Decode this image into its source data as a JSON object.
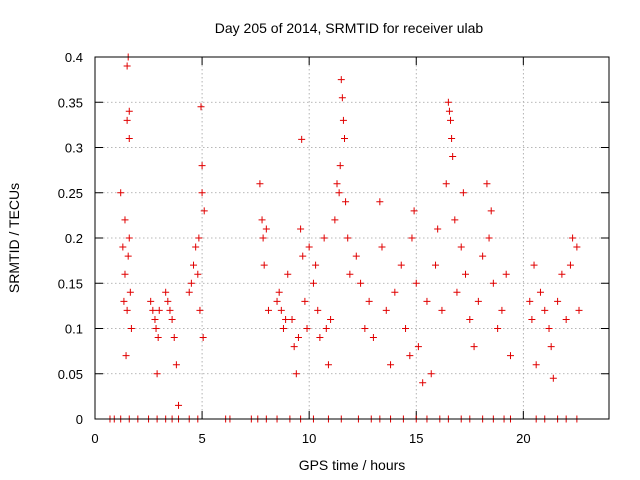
{
  "chart_data": {
    "type": "scatter",
    "title": "Day 205 of 2014, SRMTID for receiver ulab",
    "xlabel": "GPS time / hours",
    "ylabel": "SRMTID / TECUs",
    "xlim": [
      0,
      24
    ],
    "ylim": [
      0,
      0.4
    ],
    "xticks": [
      0,
      5,
      10,
      15,
      20
    ],
    "xtick_labels": [
      "0",
      "5",
      "10",
      "15",
      "20"
    ],
    "yticks": [
      0,
      0.05,
      0.1,
      0.15,
      0.2,
      0.25,
      0.3,
      0.35,
      0.4
    ],
    "ytick_labels": [
      "0",
      "0.05",
      "0.1",
      "0.15",
      "0.2",
      "0.25",
      "0.3",
      "0.35",
      "0.4"
    ],
    "grid": true,
    "marker": "plus",
    "color": "#e00000",
    "series": [
      {
        "name": "SRMTID",
        "points": [
          [
            1.2,
            0.25
          ],
          [
            1.3,
            0.19
          ],
          [
            1.35,
            0.13
          ],
          [
            1.4,
            0.22
          ],
          [
            1.4,
            0.16
          ],
          [
            1.45,
            0.07
          ],
          [
            1.5,
            0.39
          ],
          [
            1.5,
            0.33
          ],
          [
            1.5,
            0.12
          ],
          [
            1.55,
            0.4
          ],
          [
            1.55,
            0.18
          ],
          [
            1.6,
            0.34
          ],
          [
            1.6,
            0.31
          ],
          [
            1.6,
            0.2
          ],
          [
            1.65,
            0.14
          ],
          [
            1.7,
            0.1
          ],
          [
            2.6,
            0.13
          ],
          [
            2.7,
            0.12
          ],
          [
            2.8,
            0.11
          ],
          [
            2.85,
            0.1
          ],
          [
            2.9,
            0.05
          ],
          [
            2.95,
            0.09
          ],
          [
            3.0,
            0.12
          ],
          [
            3.3,
            0.14
          ],
          [
            3.4,
            0.13
          ],
          [
            3.5,
            0.12
          ],
          [
            3.6,
            0.11
          ],
          [
            3.7,
            0.09
          ],
          [
            3.8,
            0.06
          ],
          [
            3.9,
            0.015
          ],
          [
            4.4,
            0.14
          ],
          [
            4.5,
            0.15
          ],
          [
            4.6,
            0.17
          ],
          [
            4.7,
            0.19
          ],
          [
            4.8,
            0.16
          ],
          [
            4.85,
            0.2
          ],
          [
            4.9,
            0.12
          ],
          [
            4.95,
            0.345
          ],
          [
            5.0,
            0.28
          ],
          [
            5.0,
            0.25
          ],
          [
            5.05,
            0.09
          ],
          [
            5.1,
            0.23
          ],
          [
            7.7,
            0.26
          ],
          [
            7.8,
            0.22
          ],
          [
            7.85,
            0.2
          ],
          [
            7.9,
            0.17
          ],
          [
            8.0,
            0.21
          ],
          [
            8.1,
            0.12
          ],
          [
            8.5,
            0.13
          ],
          [
            8.6,
            0.14
          ],
          [
            8.7,
            0.12
          ],
          [
            8.8,
            0.1
          ],
          [
            8.9,
            0.11
          ],
          [
            9.0,
            0.16
          ],
          [
            9.2,
            0.11
          ],
          [
            9.3,
            0.08
          ],
          [
            9.4,
            0.05
          ],
          [
            9.5,
            0.09
          ],
          [
            9.6,
            0.21
          ],
          [
            9.65,
            0.309
          ],
          [
            9.7,
            0.18
          ],
          [
            9.8,
            0.13
          ],
          [
            9.9,
            0.1
          ],
          [
            10.0,
            0.19
          ],
          [
            10.2,
            0.15
          ],
          [
            10.3,
            0.17
          ],
          [
            10.4,
            0.12
          ],
          [
            10.5,
            0.09
          ],
          [
            10.7,
            0.2
          ],
          [
            10.8,
            0.1
          ],
          [
            10.9,
            0.06
          ],
          [
            11.0,
            0.11
          ],
          [
            11.2,
            0.22
          ],
          [
            11.3,
            0.26
          ],
          [
            11.4,
            0.25
          ],
          [
            11.45,
            0.28
          ],
          [
            11.5,
            0.375
          ],
          [
            11.55,
            0.355
          ],
          [
            11.6,
            0.33
          ],
          [
            11.65,
            0.31
          ],
          [
            11.7,
            0.24
          ],
          [
            11.8,
            0.2
          ],
          [
            11.9,
            0.16
          ],
          [
            12.2,
            0.18
          ],
          [
            12.4,
            0.15
          ],
          [
            12.6,
            0.1
          ],
          [
            12.8,
            0.13
          ],
          [
            13.0,
            0.09
          ],
          [
            13.3,
            0.24
          ],
          [
            13.4,
            0.19
          ],
          [
            13.6,
            0.12
          ],
          [
            13.8,
            0.06
          ],
          [
            14.0,
            0.14
          ],
          [
            14.3,
            0.17
          ],
          [
            14.5,
            0.1
          ],
          [
            14.7,
            0.07
          ],
          [
            14.8,
            0.2
          ],
          [
            14.9,
            0.23
          ],
          [
            15.0,
            0.15
          ],
          [
            15.1,
            0.08
          ],
          [
            15.3,
            0.04
          ],
          [
            15.5,
            0.13
          ],
          [
            15.7,
            0.05
          ],
          [
            15.9,
            0.17
          ],
          [
            16.0,
            0.21
          ],
          [
            16.2,
            0.12
          ],
          [
            16.4,
            0.26
          ],
          [
            16.5,
            0.35
          ],
          [
            16.55,
            0.34
          ],
          [
            16.6,
            0.33
          ],
          [
            16.65,
            0.31
          ],
          [
            16.7,
            0.29
          ],
          [
            16.8,
            0.22
          ],
          [
            16.9,
            0.14
          ],
          [
            17.1,
            0.19
          ],
          [
            17.2,
            0.25
          ],
          [
            17.3,
            0.16
          ],
          [
            17.5,
            0.11
          ],
          [
            17.7,
            0.08
          ],
          [
            17.9,
            0.13
          ],
          [
            18.1,
            0.18
          ],
          [
            18.3,
            0.26
          ],
          [
            18.4,
            0.2
          ],
          [
            18.5,
            0.23
          ],
          [
            18.6,
            0.15
          ],
          [
            18.8,
            0.1
          ],
          [
            19.0,
            0.12
          ],
          [
            19.2,
            0.16
          ],
          [
            19.4,
            0.07
          ],
          [
            20.3,
            0.13
          ],
          [
            20.4,
            0.11
          ],
          [
            20.5,
            0.17
          ],
          [
            20.6,
            0.06
          ],
          [
            20.8,
            0.14
          ],
          [
            21.0,
            0.12
          ],
          [
            21.2,
            0.1
          ],
          [
            21.3,
            0.08
          ],
          [
            21.4,
            0.045
          ],
          [
            21.6,
            0.13
          ],
          [
            21.8,
            0.16
          ],
          [
            22.0,
            0.11
          ],
          [
            22.2,
            0.17
          ],
          [
            22.3,
            0.2
          ],
          [
            22.5,
            0.19
          ],
          [
            22.6,
            0.12
          ]
        ],
        "zero_points_x": [
          0.7,
          0.9,
          1.2,
          1.6,
          2.0,
          2.5,
          2.9,
          3.3,
          3.6,
          3.9,
          4.4,
          4.8,
          6.1,
          6.3,
          7.3,
          7.6,
          8.0,
          8.5,
          9.1,
          9.6,
          10.2,
          10.9,
          11.5,
          12.3,
          12.9,
          13.3,
          13.8,
          14.4,
          15.0,
          15.5,
          16.1,
          16.5,
          17.1,
          17.5,
          18.1,
          18.6,
          19.1,
          19.4,
          20.6,
          21.0,
          21.6,
          22.0,
          22.5
        ]
      }
    ]
  }
}
